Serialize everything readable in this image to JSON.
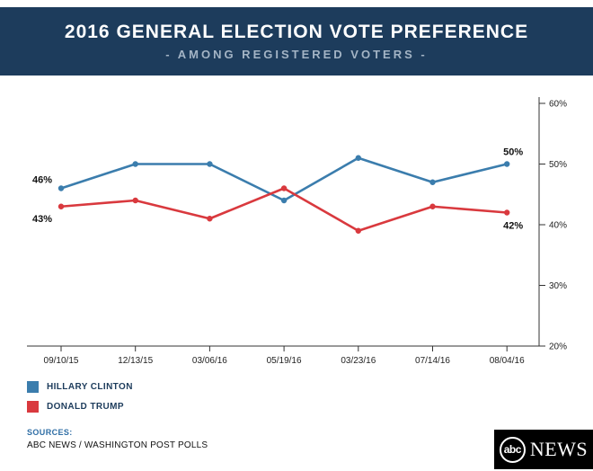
{
  "header": {
    "title": "2016 GENERAL ELECTION VOTE PREFERENCE",
    "subtitle": "- AMONG REGISTERED VOTERS -"
  },
  "colors": {
    "header_bg": "#1d3c5c",
    "clinton_blue": "#3b7dad",
    "trump_red": "#d9393e",
    "sources_blue": "#2f6ea5",
    "axis": "#333333"
  },
  "chart_data": {
    "type": "line",
    "title": "2016 General Election Vote Preference",
    "categories": [
      "09/10/15",
      "12/13/15",
      "03/06/16",
      "05/19/16",
      "03/23/16",
      "07/14/16",
      "08/04/16"
    ],
    "series": [
      {
        "name": "HILLARY CLINTON",
        "color": "#3b7dad",
        "values": [
          46,
          50,
          50,
          44,
          51,
          47,
          50
        ]
      },
      {
        "name": "DONALD TRUMP",
        "color": "#d9393e",
        "values": [
          43,
          44,
          41,
          46,
          39,
          43,
          42
        ]
      }
    ],
    "ylim": [
      20,
      60
    ],
    "y_ticks": [
      "20%",
      "30%",
      "40%",
      "50%",
      "60%"
    ],
    "y_tick_values": [
      20,
      30,
      40,
      50,
      60
    ],
    "y_axis_position": "right",
    "grid": false,
    "legend_position": "bottom-left",
    "annotations": [
      {
        "series": 0,
        "point": "first",
        "text": "46%"
      },
      {
        "series": 1,
        "point": "first",
        "text": "43%"
      },
      {
        "series": 0,
        "point": "last",
        "text": "50%"
      },
      {
        "series": 1,
        "point": "last",
        "text": "42%"
      }
    ]
  },
  "legend": {
    "items": [
      {
        "label": "HILLARY CLINTON",
        "color": "#3b7dad"
      },
      {
        "label": "DONALD TRUMP",
        "color": "#d9393e"
      }
    ]
  },
  "footer": {
    "sources_label": "SOURCES:",
    "sources_text": "ABC NEWS / WASHINGTON POST POLLS",
    "logo_abc": "abc",
    "logo_news": "NEWS"
  }
}
